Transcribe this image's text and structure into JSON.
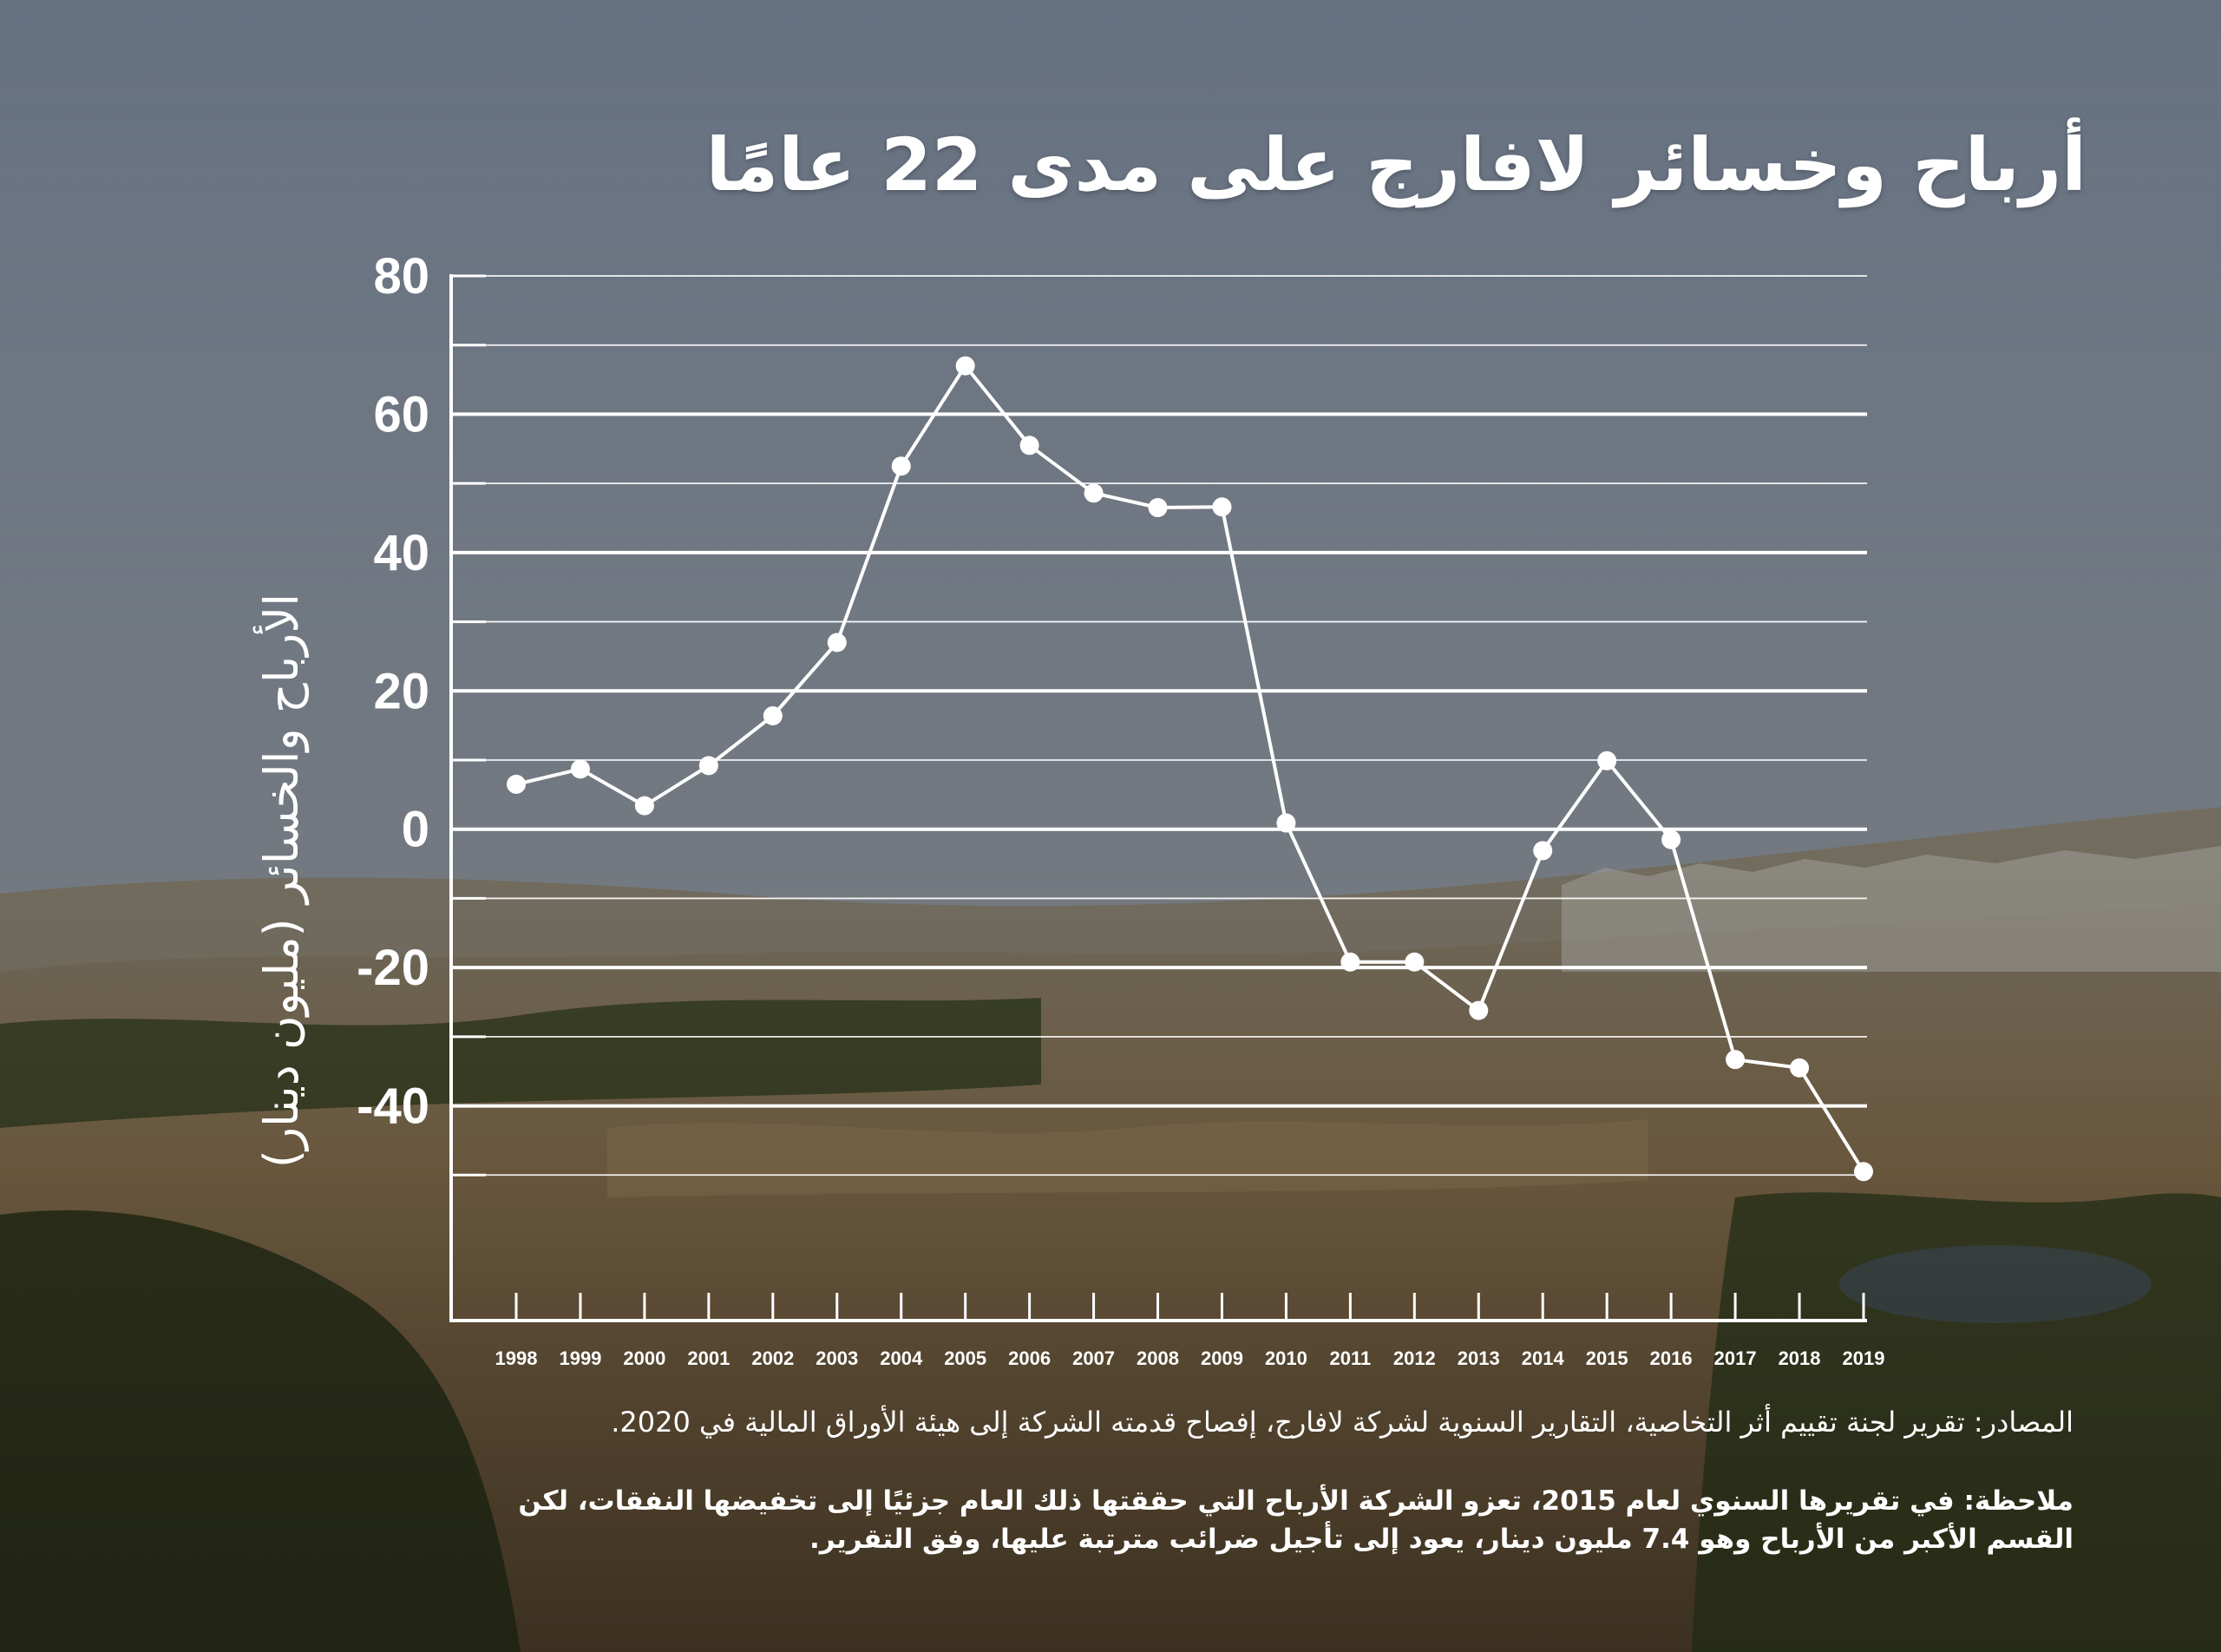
{
  "page": {
    "title": "أرباح وخسائر لافارج على مدى 22 عامًا",
    "source": "المصادر: تقرير لجنة تقييم أثر التخاصية، التقارير السنوية لشركة لافارج، إفصاح قدمته الشركة إلى هيئة الأوراق المالية في 2020.",
    "note": "ملاحظة: في تقريرها السنوي لعام 2015، تعزو الشركة الأرباح التي حققتها ذلك العام جزئيًا إلى تخفيضها النفقات، لكن القسم الأكبر من الأرباح وهو 7.4 مليون دينار، يعود إلى تأجيل ضرائب مترتبة عليها، وفق التقرير."
  },
  "colors": {
    "sky_top": "#6f7b8c",
    "sky_bottom": "#9aa0a6",
    "land": "#8a7452",
    "trees": "#2f3a1e",
    "line": "#ffffff",
    "text": "#ffffff"
  },
  "chart_data": {
    "type": "line",
    "title": "أرباح وخسائر لافارج على مدى 22 عامًا",
    "ylabel": "الأرباح والخسائر (مليون دينار)",
    "xlabel": "",
    "x": [
      "1998",
      "1999",
      "2000",
      "2001",
      "2002",
      "2003",
      "2004",
      "2005",
      "2006",
      "2007",
      "2008",
      "2009",
      "2010",
      "2011",
      "2012",
      "2013",
      "2014",
      "2015",
      "2016",
      "2017",
      "2018",
      "2019"
    ],
    "series": [
      {
        "values": [
          6.5,
          8.7,
          3.4,
          9.2,
          16.4,
          27.0,
          52.5,
          67.0,
          55.5,
          48.6,
          46.5,
          46.6,
          0.9,
          -19.2,
          -19.2,
          -26.2,
          -3.1,
          9.9,
          -1.5,
          -33.3,
          -34.5,
          -49.5
        ]
      }
    ],
    "ylim": [
      -60,
      80
    ],
    "yticks": [
      80,
      60,
      40,
      20,
      0,
      -20,
      -40
    ],
    "ytick_labels": [
      "80",
      "60",
      "40",
      "20",
      "0",
      "-20",
      "-40"
    ],
    "grid": true
  }
}
